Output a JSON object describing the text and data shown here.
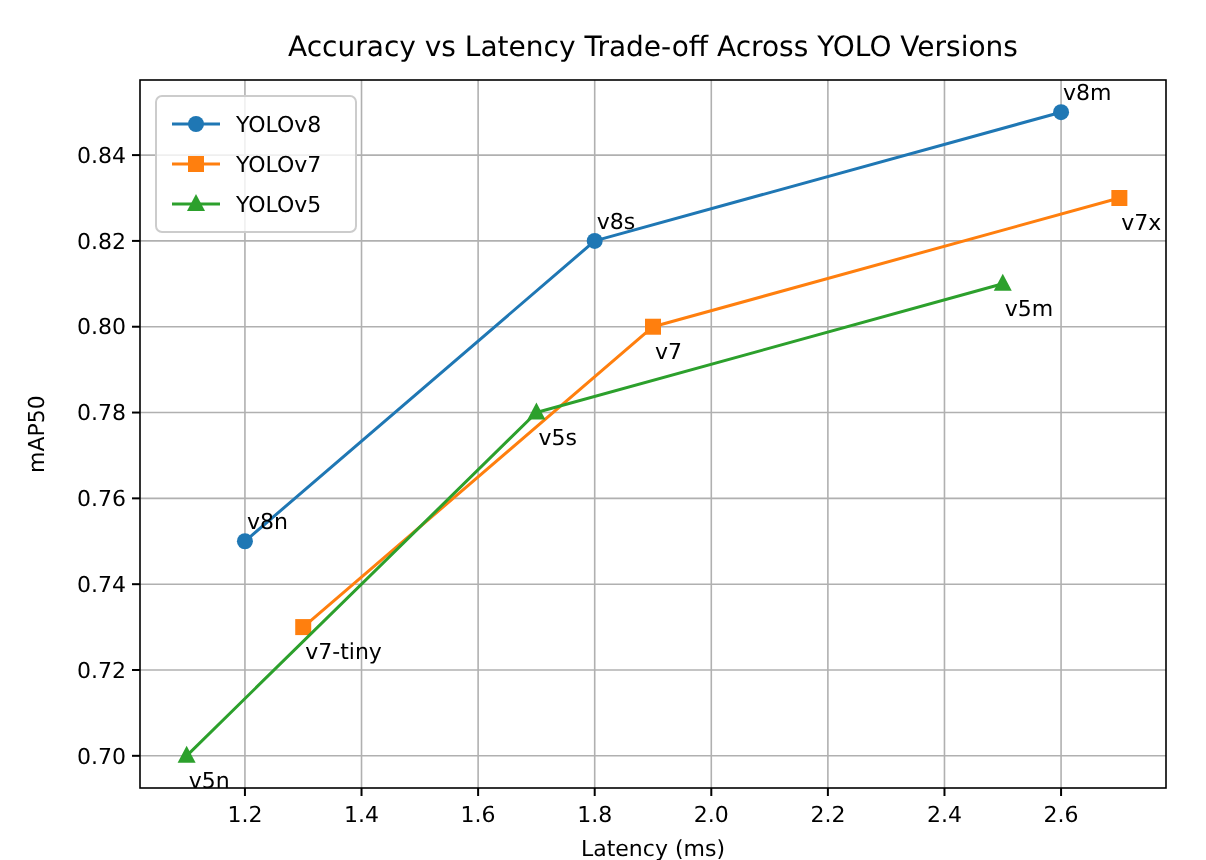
{
  "chart_data": {
    "type": "line",
    "title": "Accuracy vs Latency Trade-off Across YOLO Versions",
    "xlabel": "Latency (ms)",
    "ylabel": "mAP50",
    "xlim": [
      1.02,
      2.78
    ],
    "ylim": [
      0.6925,
      0.8575
    ],
    "xticks": [
      {
        "value": 1.2,
        "label": "1.2"
      },
      {
        "value": 1.4,
        "label": "1.4"
      },
      {
        "value": 1.6,
        "label": "1.6"
      },
      {
        "value": 1.8,
        "label": "1.8"
      },
      {
        "value": 2.0,
        "label": "2.0"
      },
      {
        "value": 2.2,
        "label": "2.2"
      },
      {
        "value": 2.4,
        "label": "2.4"
      },
      {
        "value": 2.6,
        "label": "2.6"
      }
    ],
    "yticks": [
      {
        "value": 0.7,
        "label": "0.70"
      },
      {
        "value": 0.72,
        "label": "0.72"
      },
      {
        "value": 0.74,
        "label": "0.74"
      },
      {
        "value": 0.76,
        "label": "0.76"
      },
      {
        "value": 0.78,
        "label": "0.78"
      },
      {
        "value": 0.8,
        "label": "0.80"
      },
      {
        "value": 0.82,
        "label": "0.82"
      },
      {
        "value": 0.84,
        "label": "0.84"
      }
    ],
    "grid": true,
    "legend": "top left",
    "line_style": "solid",
    "series": [
      {
        "name": "YOLOv8",
        "color": "#1f77b4",
        "marker": "circle",
        "x": [
          1.2,
          1.8,
          2.6
        ],
        "values": [
          0.75,
          0.82,
          0.85
        ]
      },
      {
        "name": "YOLOv7",
        "color": "#ff7f0e",
        "marker": "square",
        "x": [
          1.3,
          1.9,
          2.7
        ],
        "values": [
          0.73,
          0.8,
          0.83
        ]
      },
      {
        "name": "YOLOv5",
        "color": "#2ca02c",
        "marker": "triangle",
        "x": [
          1.1,
          1.7,
          2.5
        ],
        "values": [
          0.7,
          0.78,
          0.81
        ]
      }
    ],
    "annotations": [
      {
        "text": "v8n",
        "x": 1.2,
        "y": 0.75
      },
      {
        "text": "v8s",
        "x": 1.8,
        "y": 0.82
      },
      {
        "text": "v8m",
        "x": 2.6,
        "y": 0.85
      },
      {
        "text": "v7-tiny",
        "x": 1.3,
        "y": 0.73
      },
      {
        "text": "v7",
        "x": 1.9,
        "y": 0.8
      },
      {
        "text": "v7x",
        "x": 2.7,
        "y": 0.83
      },
      {
        "text": "v5n",
        "x": 1.1,
        "y": 0.7
      },
      {
        "text": "v5s",
        "x": 1.7,
        "y": 0.78
      },
      {
        "text": "v5m",
        "x": 2.5,
        "y": 0.81
      }
    ]
  }
}
